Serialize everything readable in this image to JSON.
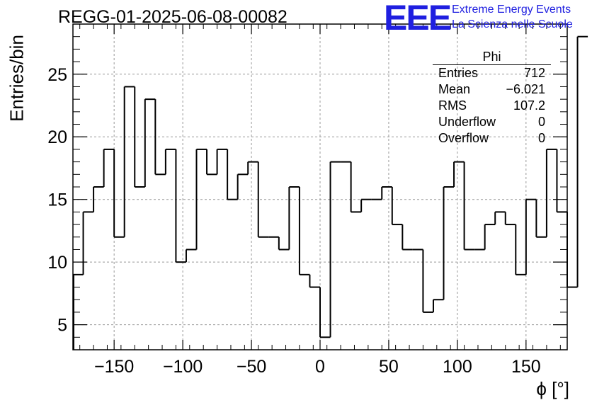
{
  "header": {
    "title": "REGG-01-2025-06-08-00082",
    "logo_text": "EEE",
    "logo_line1": "Extreme Energy Events",
    "logo_line2": "La Scienza nelle Scuole"
  },
  "stats_box": {
    "title": "Phi",
    "rows": [
      {
        "label": "Entries",
        "value": "712"
      },
      {
        "label": "Mean",
        "value": "−6.021"
      },
      {
        "label": "RMS",
        "value": "107.2"
      },
      {
        "label": "Underflow",
        "value": "0"
      },
      {
        "label": "Overflow",
        "value": "0"
      }
    ]
  },
  "colors": {
    "line": "#000000",
    "grid": "#999999",
    "logo": "#1f1fe0"
  },
  "chart_data": {
    "type": "bar",
    "histogram": true,
    "title": "REGG-01-2025-06-08-00082",
    "xlabel": "ϕ [°]",
    "ylabel": "Entries/bin",
    "bin_width": 7.5,
    "bin_start": -180,
    "values": [
      9,
      14,
      16,
      19,
      12,
      24,
      16,
      23,
      17,
      19,
      10,
      11,
      19,
      17,
      19,
      15,
      17,
      18,
      12,
      12,
      11,
      16,
      9,
      8,
      4,
      18,
      18,
      14,
      15,
      15,
      16,
      13,
      11,
      11,
      6,
      7,
      16,
      18,
      11,
      11,
      13,
      14,
      13,
      9,
      15,
      12,
      19,
      14,
      8,
      28
    ],
    "xlim": [
      -180,
      180
    ],
    "ylim": [
      3,
      29
    ],
    "x_ticks": [
      -150,
      -100,
      -50,
      0,
      50,
      100,
      150
    ],
    "x_tick_labels": [
      "−150",
      "−100",
      "−50",
      "0",
      "50",
      "100",
      "150"
    ],
    "y_ticks": [
      5,
      10,
      15,
      20,
      25
    ],
    "y_tick_labels": [
      "5",
      "10",
      "15",
      "20",
      "25"
    ],
    "grid": true
  }
}
